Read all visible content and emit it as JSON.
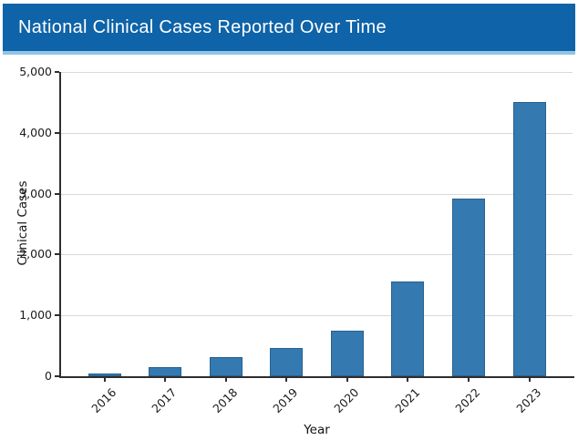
{
  "header": {
    "title": "National Clinical Cases Reported Over Time",
    "background_color": "#0f63a8",
    "underline_color": "#8fc5e3"
  },
  "chart_data": {
    "type": "bar",
    "title": "National Clinical Cases Reported Over Time",
    "categories": [
      "2016",
      "2017",
      "2018",
      "2019",
      "2020",
      "2021",
      "2022",
      "2023"
    ],
    "values": [
      50,
      155,
      320,
      460,
      750,
      1550,
      2920,
      4500
    ],
    "xlabel": "Year",
    "ylabel": "Clinical Cases",
    "ylim": [
      0,
      5000
    ],
    "yticks": [
      0,
      1000,
      2000,
      3000,
      4000,
      5000
    ],
    "ytick_labels": [
      "0",
      "1,000",
      "2,000",
      "3,000",
      "4,000",
      "5,000"
    ],
    "grid": "horizontal",
    "gridline_color": "#d9d9d9",
    "bar_color": "#3579b1",
    "bar_edge_color": "#27618f",
    "x_tick_rotation": 45,
    "legend": "none"
  }
}
